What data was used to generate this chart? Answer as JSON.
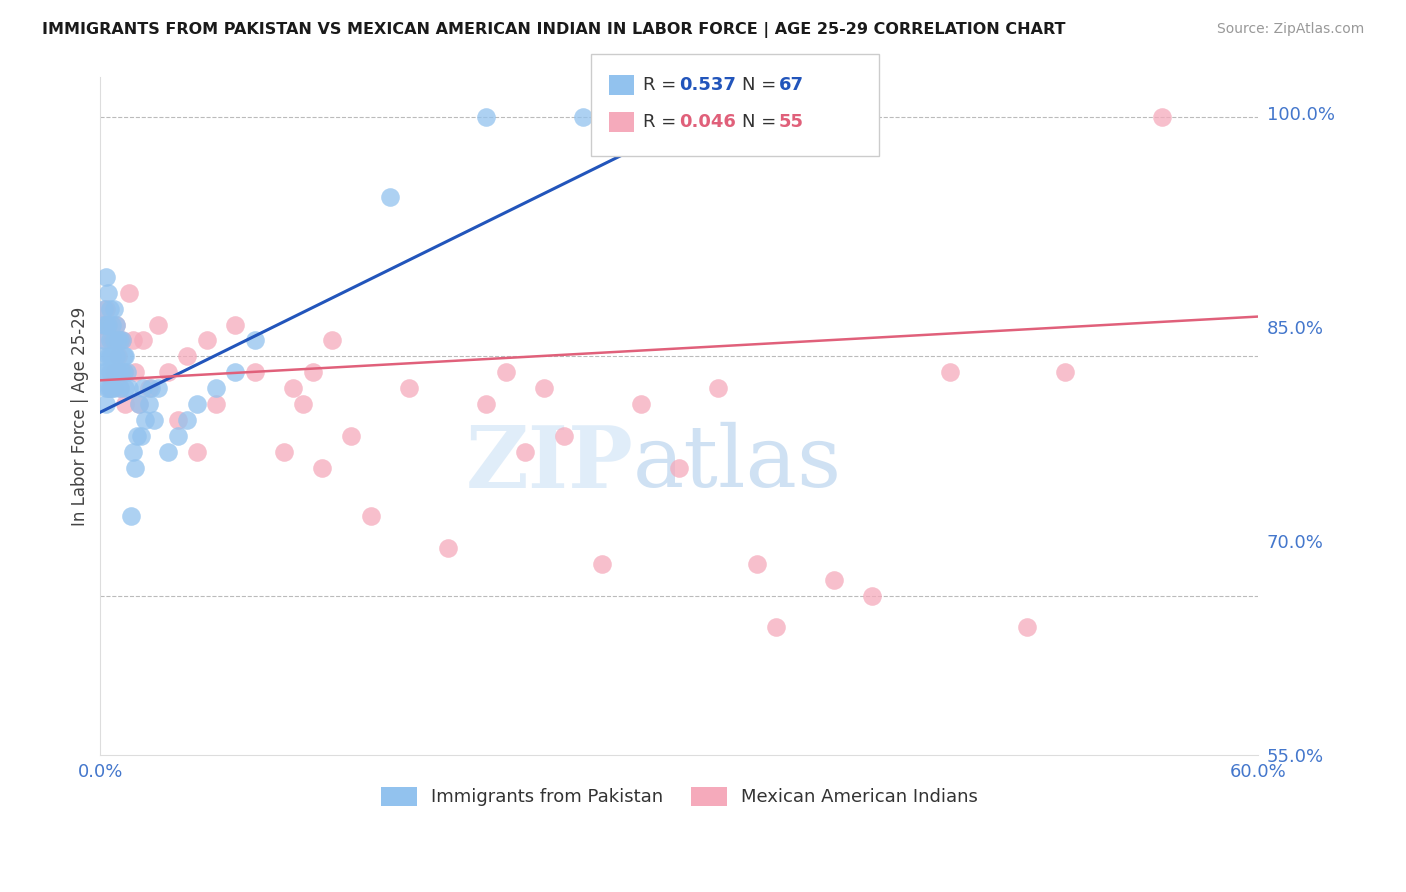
{
  "title": "IMMIGRANTS FROM PAKISTAN VS MEXICAN AMERICAN INDIAN IN LABOR FORCE | AGE 25-29 CORRELATION CHART",
  "source": "Source: ZipAtlas.com",
  "ylabel": "In Labor Force | Age 25-29",
  "xlim": [
    0.0,
    0.6
  ],
  "ylim": [
    0.6,
    1.025
  ],
  "yticks": [
    1.0,
    0.85,
    0.7,
    0.55
  ],
  "ytick_labels": [
    "100.0%",
    "85.0%",
    "70.0%",
    "55.0%"
  ],
  "xticks": [
    0.0,
    0.1,
    0.2,
    0.3,
    0.4,
    0.5,
    0.6
  ],
  "xtick_labels": [
    "0.0%",
    "",
    "",
    "",
    "",
    "",
    "60.0%"
  ],
  "blue_R": 0.537,
  "blue_N": 67,
  "pink_R": 0.046,
  "pink_N": 55,
  "blue_color": "#92C2EE",
  "pink_color": "#F5AABB",
  "blue_line_color": "#2255BB",
  "pink_line_color": "#E0607A",
  "axis_color": "#4477CC",
  "grid_color": "#BBBBBB",
  "background_color": "#FFFFFF",
  "watermark_zip": "ZIP",
  "watermark_atlas": "atlas",
  "blue_scatter_x": [
    0.001,
    0.001,
    0.002,
    0.002,
    0.002,
    0.003,
    0.003,
    0.003,
    0.003,
    0.003,
    0.004,
    0.004,
    0.004,
    0.004,
    0.005,
    0.005,
    0.005,
    0.005,
    0.005,
    0.006,
    0.006,
    0.006,
    0.006,
    0.007,
    0.007,
    0.007,
    0.007,
    0.008,
    0.008,
    0.008,
    0.009,
    0.009,
    0.01,
    0.01,
    0.011,
    0.011,
    0.012,
    0.012,
    0.013,
    0.013,
    0.014,
    0.015,
    0.016,
    0.017,
    0.018,
    0.019,
    0.02,
    0.021,
    0.022,
    0.023,
    0.025,
    0.026,
    0.028,
    0.03,
    0.035,
    0.04,
    0.045,
    0.05,
    0.06,
    0.07,
    0.08,
    0.15,
    0.2,
    0.25,
    0.26,
    0.27,
    0.31
  ],
  "blue_scatter_y": [
    0.84,
    0.85,
    0.86,
    0.87,
    0.88,
    0.82,
    0.83,
    0.84,
    0.87,
    0.9,
    0.83,
    0.85,
    0.87,
    0.89,
    0.83,
    0.84,
    0.85,
    0.86,
    0.88,
    0.83,
    0.84,
    0.85,
    0.87,
    0.83,
    0.84,
    0.86,
    0.88,
    0.84,
    0.85,
    0.87,
    0.84,
    0.86,
    0.83,
    0.86,
    0.84,
    0.86,
    0.84,
    0.85,
    0.83,
    0.85,
    0.84,
    0.83,
    0.75,
    0.79,
    0.78,
    0.8,
    0.82,
    0.8,
    0.83,
    0.81,
    0.82,
    0.83,
    0.81,
    0.83,
    0.79,
    0.8,
    0.81,
    0.82,
    0.83,
    0.84,
    0.86,
    0.95,
    1.0,
    1.0,
    1.0,
    1.0,
    1.0
  ],
  "pink_scatter_x": [
    0.001,
    0.002,
    0.003,
    0.004,
    0.005,
    0.006,
    0.007,
    0.008,
    0.009,
    0.01,
    0.011,
    0.012,
    0.013,
    0.015,
    0.017,
    0.018,
    0.02,
    0.022,
    0.025,
    0.03,
    0.035,
    0.04,
    0.045,
    0.05,
    0.055,
    0.06,
    0.07,
    0.08,
    0.095,
    0.1,
    0.105,
    0.11,
    0.115,
    0.12,
    0.13,
    0.14,
    0.16,
    0.18,
    0.2,
    0.21,
    0.22,
    0.23,
    0.24,
    0.26,
    0.28,
    0.3,
    0.32,
    0.34,
    0.35,
    0.38,
    0.4,
    0.44,
    0.48,
    0.5,
    0.55
  ],
  "pink_scatter_y": [
    0.87,
    0.86,
    0.88,
    0.87,
    0.83,
    0.86,
    0.84,
    0.87,
    0.85,
    0.83,
    0.86,
    0.84,
    0.82,
    0.89,
    0.86,
    0.84,
    0.82,
    0.86,
    0.83,
    0.87,
    0.84,
    0.81,
    0.85,
    0.79,
    0.86,
    0.82,
    0.87,
    0.84,
    0.79,
    0.83,
    0.82,
    0.84,
    0.78,
    0.86,
    0.8,
    0.75,
    0.83,
    0.73,
    0.82,
    0.84,
    0.79,
    0.83,
    0.8,
    0.72,
    0.82,
    0.78,
    0.83,
    0.72,
    0.68,
    0.71,
    0.7,
    0.84,
    0.68,
    0.84,
    1.0
  ],
  "blue_trendline_x": [
    0.0,
    0.31
  ],
  "blue_trendline_y": [
    0.815,
    1.0
  ],
  "pink_trendline_x": [
    0.0,
    0.6
  ],
  "pink_trendline_y": [
    0.835,
    0.875
  ]
}
